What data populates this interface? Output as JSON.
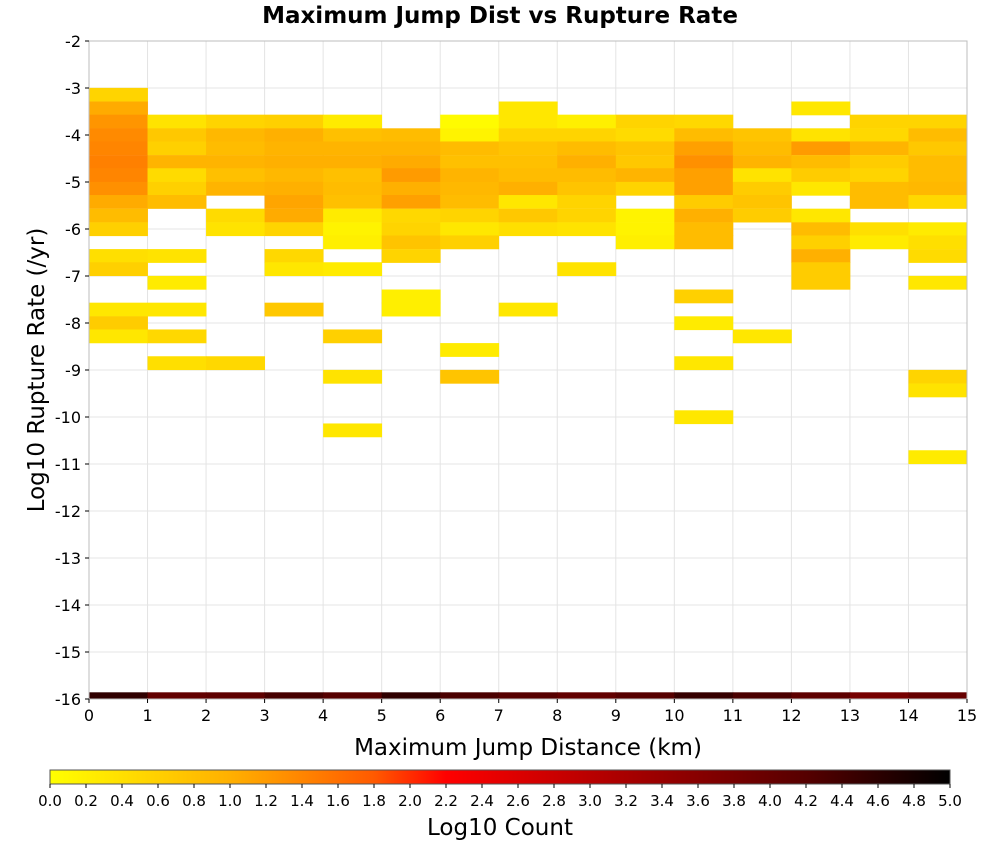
{
  "chart_data": {
    "type": "heatmap",
    "title": "Maximum Jump Dist vs Rupture Rate",
    "xlabel": "Maximum Jump Distance (km)",
    "ylabel": "Log10 Rupture Rate (/yr)",
    "xlim": [
      0,
      15
    ],
    "ylim": [
      -16,
      -2
    ],
    "x_ticks": [
      "0",
      "1",
      "2",
      "3",
      "4",
      "5",
      "6",
      "7",
      "8",
      "9",
      "10",
      "11",
      "12",
      "13",
      "14",
      "15"
    ],
    "y_ticks": [
      "-2",
      "-3",
      "-4",
      "-5",
      "-6",
      "-7",
      "-8",
      "-9",
      "-10",
      "-11",
      "-12",
      "-13",
      "-14",
      "-15",
      "-16"
    ],
    "x_bin_width": 1,
    "y_bin_height": 0.285,
    "grid": true,
    "colorbar": {
      "label": "Log10 Count",
      "min": 0.0,
      "max": 5.0,
      "ticks": [
        "0.0",
        "0.2",
        "0.4",
        "0.6",
        "0.8",
        "1.0",
        "1.2",
        "1.4",
        "1.6",
        "1.8",
        "2.0",
        "2.2",
        "2.4",
        "2.6",
        "2.8",
        "3.0",
        "3.2",
        "3.4",
        "3.6",
        "3.8",
        "4.0",
        "4.2",
        "4.4",
        "4.6",
        "4.8",
        "5.0"
      ],
      "placement": "bottom",
      "stops": [
        {
          "value": 0.0,
          "color": "#ffff00"
        },
        {
          "value": 1.0,
          "color": "#ffb000"
        },
        {
          "value": 1.8,
          "color": "#ff5a00"
        },
        {
          "value": 2.2,
          "color": "#ff0000"
        },
        {
          "value": 3.2,
          "color": "#a80000"
        },
        {
          "value": 4.2,
          "color": "#560000"
        },
        {
          "value": 5.0,
          "color": "#000000"
        }
      ]
    },
    "columns": [
      {
        "x": 0,
        "cells": [
          {
            "y": -3.14,
            "v": 0.55
          },
          {
            "y": -3.43,
            "v": 1.05
          },
          {
            "y": -3.71,
            "v": 1.25
          },
          {
            "y": -4.0,
            "v": 1.35
          },
          {
            "y": -4.28,
            "v": 1.4
          },
          {
            "y": -4.57,
            "v": 1.45
          },
          {
            "y": -4.85,
            "v": 1.4
          },
          {
            "y": -5.14,
            "v": 1.3
          },
          {
            "y": -5.42,
            "v": 1.05
          },
          {
            "y": -5.71,
            "v": 0.85
          },
          {
            "y": -6.0,
            "v": 0.6
          },
          {
            "y": -6.57,
            "v": 0.4
          },
          {
            "y": -6.85,
            "v": 0.6
          },
          {
            "y": -7.71,
            "v": 0.3
          },
          {
            "y": -8.0,
            "v": 0.65
          },
          {
            "y": -8.28,
            "v": 0.3
          },
          {
            "y": -16.0,
            "v": 4.55
          }
        ]
      },
      {
        "x": 1,
        "cells": [
          {
            "y": -3.71,
            "v": 0.35
          },
          {
            "y": -4.0,
            "v": 0.7
          },
          {
            "y": -4.28,
            "v": 0.6
          },
          {
            "y": -4.57,
            "v": 0.95
          },
          {
            "y": -4.85,
            "v": 0.45
          },
          {
            "y": -5.14,
            "v": 0.6
          },
          {
            "y": -5.42,
            "v": 0.85
          },
          {
            "y": -6.57,
            "v": 0.35
          },
          {
            "y": -7.14,
            "v": 0.25
          },
          {
            "y": -7.71,
            "v": 0.3
          },
          {
            "y": -8.28,
            "v": 0.5
          },
          {
            "y": -8.85,
            "v": 0.4
          },
          {
            "y": -16.0,
            "v": 4.05
          }
        ]
      },
      {
        "x": 2,
        "cells": [
          {
            "y": -3.71,
            "v": 0.55
          },
          {
            "y": -4.0,
            "v": 0.9
          },
          {
            "y": -4.28,
            "v": 0.85
          },
          {
            "y": -4.57,
            "v": 0.95
          },
          {
            "y": -4.85,
            "v": 0.8
          },
          {
            "y": -5.14,
            "v": 0.95
          },
          {
            "y": -5.71,
            "v": 0.45
          },
          {
            "y": -6.0,
            "v": 0.35
          },
          {
            "y": -8.85,
            "v": 0.5
          },
          {
            "y": -16.0,
            "v": 4.1
          }
        ]
      },
      {
        "x": 3,
        "cells": [
          {
            "y": -3.71,
            "v": 0.6
          },
          {
            "y": -4.0,
            "v": 1.0
          },
          {
            "y": -4.28,
            "v": 0.95
          },
          {
            "y": -4.57,
            "v": 1.0
          },
          {
            "y": -4.85,
            "v": 0.9
          },
          {
            "y": -5.14,
            "v": 1.0
          },
          {
            "y": -5.42,
            "v": 1.1
          },
          {
            "y": -5.71,
            "v": 1.05
          },
          {
            "y": -6.0,
            "v": 0.55
          },
          {
            "y": -6.57,
            "v": 0.5
          },
          {
            "y": -6.85,
            "v": 0.3
          },
          {
            "y": -7.71,
            "v": 0.7
          },
          {
            "y": -16.0,
            "v": 4.35
          }
        ]
      },
      {
        "x": 4,
        "cells": [
          {
            "y": -3.71,
            "v": 0.25
          },
          {
            "y": -4.0,
            "v": 0.8
          },
          {
            "y": -4.28,
            "v": 0.95
          },
          {
            "y": -4.57,
            "v": 1.0
          },
          {
            "y": -4.85,
            "v": 0.8
          },
          {
            "y": -5.14,
            "v": 0.85
          },
          {
            "y": -5.42,
            "v": 0.8
          },
          {
            "y": -5.71,
            "v": 0.25
          },
          {
            "y": -6.0,
            "v": 0.15
          },
          {
            "y": -6.28,
            "v": 0.2
          },
          {
            "y": -6.85,
            "v": 0.25
          },
          {
            "y": -8.28,
            "v": 0.6
          },
          {
            "y": -9.14,
            "v": 0.35
          },
          {
            "y": -10.28,
            "v": 0.3
          },
          {
            "y": -16.0,
            "v": 4.2
          }
        ]
      },
      {
        "x": 5,
        "cells": [
          {
            "y": -4.0,
            "v": 0.85
          },
          {
            "y": -4.28,
            "v": 0.95
          },
          {
            "y": -4.57,
            "v": 1.05
          },
          {
            "y": -4.85,
            "v": 1.2
          },
          {
            "y": -5.14,
            "v": 1.0
          },
          {
            "y": -5.42,
            "v": 1.15
          },
          {
            "y": -5.71,
            "v": 0.5
          },
          {
            "y": -6.0,
            "v": 0.55
          },
          {
            "y": -6.28,
            "v": 0.75
          },
          {
            "y": -6.57,
            "v": 0.55
          },
          {
            "y": -7.43,
            "v": 0.2
          },
          {
            "y": -7.71,
            "v": 0.2
          },
          {
            "y": -16.0,
            "v": 4.55
          }
        ]
      },
      {
        "x": 6,
        "cells": [
          {
            "y": -3.71,
            "v": 0.05
          },
          {
            "y": -4.0,
            "v": 0.15
          },
          {
            "y": -4.28,
            "v": 0.85
          },
          {
            "y": -4.57,
            "v": 0.8
          },
          {
            "y": -4.85,
            "v": 0.95
          },
          {
            "y": -5.14,
            "v": 0.9
          },
          {
            "y": -5.42,
            "v": 0.85
          },
          {
            "y": -5.71,
            "v": 0.55
          },
          {
            "y": -6.0,
            "v": 0.3
          },
          {
            "y": -6.28,
            "v": 0.6
          },
          {
            "y": -8.57,
            "v": 0.25
          },
          {
            "y": -9.14,
            "v": 0.75
          },
          {
            "y": -16.0,
            "v": 4.3
          }
        ]
      },
      {
        "x": 7,
        "cells": [
          {
            "y": -3.43,
            "v": 0.3
          },
          {
            "y": -3.71,
            "v": 0.3
          },
          {
            "y": -4.0,
            "v": 0.55
          },
          {
            "y": -4.28,
            "v": 0.75
          },
          {
            "y": -4.57,
            "v": 0.8
          },
          {
            "y": -4.85,
            "v": 0.85
          },
          {
            "y": -5.14,
            "v": 1.0
          },
          {
            "y": -5.42,
            "v": 0.3
          },
          {
            "y": -5.71,
            "v": 0.7
          },
          {
            "y": -6.0,
            "v": 0.4
          },
          {
            "y": -7.71,
            "v": 0.3
          },
          {
            "y": -16.0,
            "v": 4.2
          }
        ]
      },
      {
        "x": 8,
        "cells": [
          {
            "y": -3.71,
            "v": 0.2
          },
          {
            "y": -4.0,
            "v": 0.55
          },
          {
            "y": -4.28,
            "v": 0.85
          },
          {
            "y": -4.57,
            "v": 1.0
          },
          {
            "y": -4.85,
            "v": 0.85
          },
          {
            "y": -5.14,
            "v": 0.75
          },
          {
            "y": -5.42,
            "v": 0.55
          },
          {
            "y": -5.71,
            "v": 0.55
          },
          {
            "y": -6.0,
            "v": 0.35
          },
          {
            "y": -6.85,
            "v": 0.35
          },
          {
            "y": -16.0,
            "v": 4.05
          }
        ]
      },
      {
        "x": 9,
        "cells": [
          {
            "y": -3.71,
            "v": 0.55
          },
          {
            "y": -4.0,
            "v": 0.45
          },
          {
            "y": -4.28,
            "v": 0.75
          },
          {
            "y": -4.57,
            "v": 0.7
          },
          {
            "y": -4.85,
            "v": 0.95
          },
          {
            "y": -5.14,
            "v": 0.55
          },
          {
            "y": -5.71,
            "v": 0.15
          },
          {
            "y": -6.0,
            "v": 0.15
          },
          {
            "y": -6.28,
            "v": 0.2
          },
          {
            "y": -16.0,
            "v": 4.2
          }
        ]
      },
      {
        "x": 10,
        "cells": [
          {
            "y": -3.71,
            "v": 0.5
          },
          {
            "y": -4.0,
            "v": 0.85
          },
          {
            "y": -4.28,
            "v": 1.15
          },
          {
            "y": -4.57,
            "v": 1.3
          },
          {
            "y": -4.85,
            "v": 1.15
          },
          {
            "y": -5.14,
            "v": 1.15
          },
          {
            "y": -5.42,
            "v": 0.65
          },
          {
            "y": -5.71,
            "v": 1.0
          },
          {
            "y": -6.0,
            "v": 0.85
          },
          {
            "y": -6.28,
            "v": 0.85
          },
          {
            "y": -7.43,
            "v": 0.6
          },
          {
            "y": -8.0,
            "v": 0.25
          },
          {
            "y": -8.85,
            "v": 0.3
          },
          {
            "y": -10.0,
            "v": 0.3
          },
          {
            "y": -16.0,
            "v": 4.5
          }
        ]
      },
      {
        "x": 11,
        "cells": [
          {
            "y": -4.0,
            "v": 0.75
          },
          {
            "y": -4.28,
            "v": 0.85
          },
          {
            "y": -4.57,
            "v": 0.95
          },
          {
            "y": -4.85,
            "v": 0.35
          },
          {
            "y": -5.14,
            "v": 0.65
          },
          {
            "y": -5.42,
            "v": 0.75
          },
          {
            "y": -5.71,
            "v": 0.65
          },
          {
            "y": -8.28,
            "v": 0.3
          },
          {
            "y": -16.0,
            "v": 4.3
          }
        ]
      },
      {
        "x": 12,
        "cells": [
          {
            "y": -3.43,
            "v": 0.3
          },
          {
            "y": -4.0,
            "v": 0.35
          },
          {
            "y": -4.28,
            "v": 1.2
          },
          {
            "y": -4.57,
            "v": 0.85
          },
          {
            "y": -4.85,
            "v": 0.65
          },
          {
            "y": -5.14,
            "v": 0.3
          },
          {
            "y": -5.71,
            "v": 0.3
          },
          {
            "y": -6.0,
            "v": 0.85
          },
          {
            "y": -6.28,
            "v": 0.6
          },
          {
            "y": -6.57,
            "v": 1.0
          },
          {
            "y": -6.85,
            "v": 0.65
          },
          {
            "y": -7.14,
            "v": 0.65
          },
          {
            "y": -16.0,
            "v": 4.1
          }
        ]
      },
      {
        "x": 13,
        "cells": [
          {
            "y": -3.71,
            "v": 0.55
          },
          {
            "y": -4.0,
            "v": 0.5
          },
          {
            "y": -4.28,
            "v": 0.95
          },
          {
            "y": -4.57,
            "v": 0.65
          },
          {
            "y": -4.85,
            "v": 0.55
          },
          {
            "y": -5.14,
            "v": 0.85
          },
          {
            "y": -5.42,
            "v": 0.85
          },
          {
            "y": -6.0,
            "v": 0.4
          },
          {
            "y": -6.28,
            "v": 0.25
          },
          {
            "y": -16.0,
            "v": 3.8
          }
        ]
      },
      {
        "x": 14,
        "cells": [
          {
            "y": -3.71,
            "v": 0.55
          },
          {
            "y": -4.0,
            "v": 0.85
          },
          {
            "y": -4.28,
            "v": 0.7
          },
          {
            "y": -4.57,
            "v": 0.85
          },
          {
            "y": -4.85,
            "v": 0.85
          },
          {
            "y": -5.14,
            "v": 0.9
          },
          {
            "y": -5.42,
            "v": 0.5
          },
          {
            "y": -6.0,
            "v": 0.25
          },
          {
            "y": -6.28,
            "v": 0.4
          },
          {
            "y": -6.57,
            "v": 0.45
          },
          {
            "y": -7.14,
            "v": 0.3
          },
          {
            "y": -9.14,
            "v": 0.55
          },
          {
            "y": -9.43,
            "v": 0.35
          },
          {
            "y": -10.85,
            "v": 0.25
          },
          {
            "y": -16.0,
            "v": 4.0
          }
        ]
      }
    ]
  }
}
